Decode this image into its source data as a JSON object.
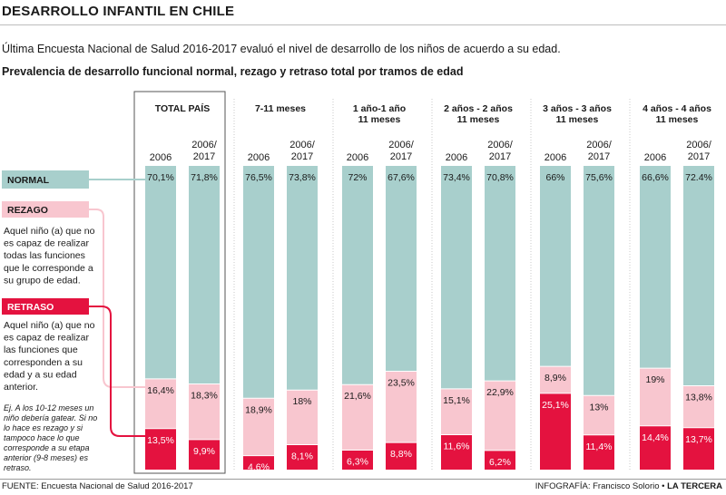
{
  "header": {
    "title": "DESARROLLO INFANTIL EN CHILE"
  },
  "intro": "Última Encuesta Nacional de Salud 2016-2017 evaluó el nivel de desarrollo de los niños de acuerdo a su edad.",
  "subtitle": "Prevalencia de desarrollo funcional normal, rezago y retraso total por tramos de edad",
  "legend": {
    "normal": {
      "label": "NORMAL"
    },
    "rezago": {
      "label": "REZAGO",
      "desc": [
        "Aquel niño (a) que no",
        "es capaz de realizar",
        "todas las funciones",
        "que le corresponde a",
        "su grupo de edad."
      ]
    },
    "retraso": {
      "label": "RETRASO",
      "desc": [
        "Aquel niño (a)  que no",
        "es capaz de realizar",
        "las funciones que",
        "corresponden a su",
        "edad y a su edad",
        "anterior."
      ]
    },
    "example": [
      "Ej. A los 10-12 meses un",
      "niño debería gatear. Si no",
      "lo hace es rezago y si",
      "tampoco hace lo que",
      "corresponde a su etapa",
      "anterior (9-8 meses) es",
      "retraso."
    ]
  },
  "footer": {
    "source": "FUENTE: Encuesta Nacional de Salud 2016-2017",
    "credit": "INFOGRAFÍA: Francisco Solorio • ",
    "brand": "LA TERCERA"
  },
  "chart_data": {
    "type": "bar",
    "stacked": true,
    "ylim": [
      0,
      100
    ],
    "colors": {
      "normal": "#a8cfcc",
      "rezago": "#f8c6cf",
      "retraso": "#e4123f"
    },
    "groups": [
      {
        "label": [
          "TOTAL PAÍS"
        ],
        "bars": [
          {
            "year": [
              "2006"
            ],
            "normal": 70.1,
            "rezago": 16.4,
            "retraso": 13.5,
            "labels": [
              "70,1%",
              "16,4%",
              "13,5%"
            ]
          },
          {
            "year": [
              "2006/",
              "2017"
            ],
            "normal": 71.8,
            "rezago": 18.3,
            "retraso": 9.9,
            "labels": [
              "71,8%",
              "18,3%",
              "9,9%"
            ]
          }
        ]
      },
      {
        "label": [
          "7-11 meses"
        ],
        "bars": [
          {
            "year": [
              "2006"
            ],
            "normal": 76.5,
            "rezago": 18.9,
            "retraso": 4.6,
            "labels": [
              "76,5%",
              "18,9%",
              "4,6%"
            ]
          },
          {
            "year": [
              "2006/",
              "2017"
            ],
            "normal": 73.8,
            "rezago": 18,
            "retraso": 8.1,
            "labels": [
              "73,8%",
              "18%",
              "8,1%"
            ]
          }
        ]
      },
      {
        "label": [
          "1 año-1 año",
          "11 meses"
        ],
        "bars": [
          {
            "year": [
              "2006"
            ],
            "normal": 72,
            "rezago": 21.6,
            "retraso": 6.3,
            "labels": [
              "72%",
              "21,6%",
              "6,3%"
            ]
          },
          {
            "year": [
              "2006/",
              "2017"
            ],
            "normal": 67.6,
            "rezago": 23.5,
            "retraso": 8.8,
            "labels": [
              "67,6%",
              "23,5%",
              "8,8%"
            ]
          }
        ]
      },
      {
        "label": [
          "2 años - 2 años",
          "11 meses"
        ],
        "bars": [
          {
            "year": [
              "2006"
            ],
            "normal": 73.4,
            "rezago": 15.1,
            "retraso": 11.6,
            "labels": [
              "73,4%",
              "15,1%",
              "11,6%"
            ]
          },
          {
            "year": [
              "2006/",
              "2017"
            ],
            "normal": 70.8,
            "rezago": 22.9,
            "retraso": 6.2,
            "labels": [
              "70,8%",
              "22,9%",
              "6,2%"
            ]
          }
        ]
      },
      {
        "label": [
          "3 años - 3 años",
          "11 meses"
        ],
        "bars": [
          {
            "year": [
              "2006"
            ],
            "normal": 66,
            "rezago": 8.9,
            "retraso": 25.1,
            "labels": [
              "66%",
              "8,9%",
              "25,1%"
            ]
          },
          {
            "year": [
              "2006/",
              "2017"
            ],
            "normal": 75.6,
            "rezago": 13,
            "retraso": 11.4,
            "labels": [
              "75,6%",
              "13%",
              "11,4%"
            ]
          }
        ]
      },
      {
        "label": [
          "4 años - 4 años",
          "11 meses"
        ],
        "bars": [
          {
            "year": [
              "2006"
            ],
            "normal": 66.6,
            "rezago": 19,
            "retraso": 14.4,
            "labels": [
              "66,6%",
              "19%",
              "14,4%"
            ]
          },
          {
            "year": [
              "2006/",
              "2017"
            ],
            "normal": 72.4,
            "rezago": 13.8,
            "retraso": 13.7,
            "labels": [
              "72.4%",
              "13,8%",
              "13,7%"
            ]
          }
        ]
      }
    ]
  }
}
